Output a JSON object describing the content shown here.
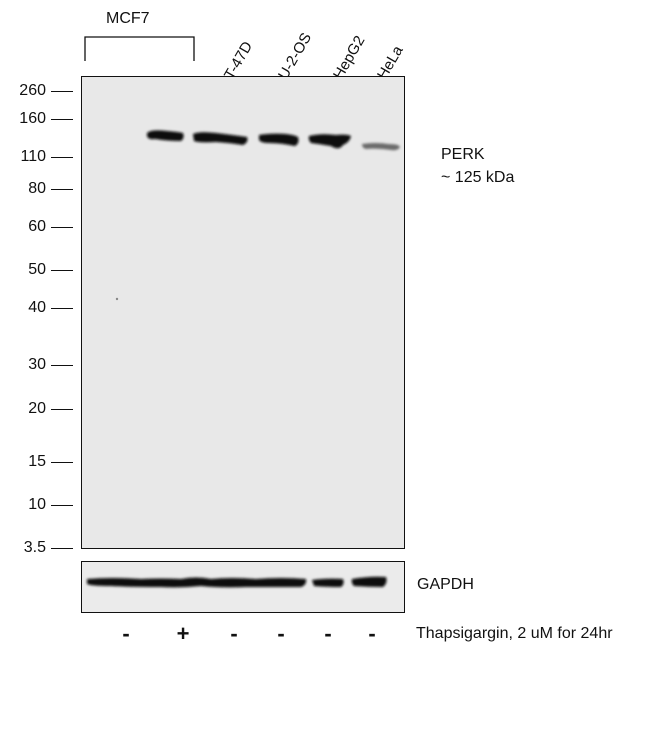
{
  "group_label": "MCF7",
  "lanes": [
    "T-47D",
    "U-2-OS",
    "HepG2",
    "HeLa"
  ],
  "mw_markers": [
    "260",
    "160",
    "110",
    "80",
    "60",
    "50",
    "40",
    "30",
    "20",
    "15",
    "10",
    "3.5"
  ],
  "protein": {
    "name": "PERK",
    "size": "~ 125 kDa"
  },
  "loading_control": "GAPDH",
  "treatments": [
    "-",
    "+",
    "-",
    "-",
    "-",
    "-"
  ],
  "treatment_label": "Thapsigargin, 2 uM for 24hr",
  "colors": {
    "band": "#0d0d0d",
    "membrane": "#e8e8e8"
  }
}
